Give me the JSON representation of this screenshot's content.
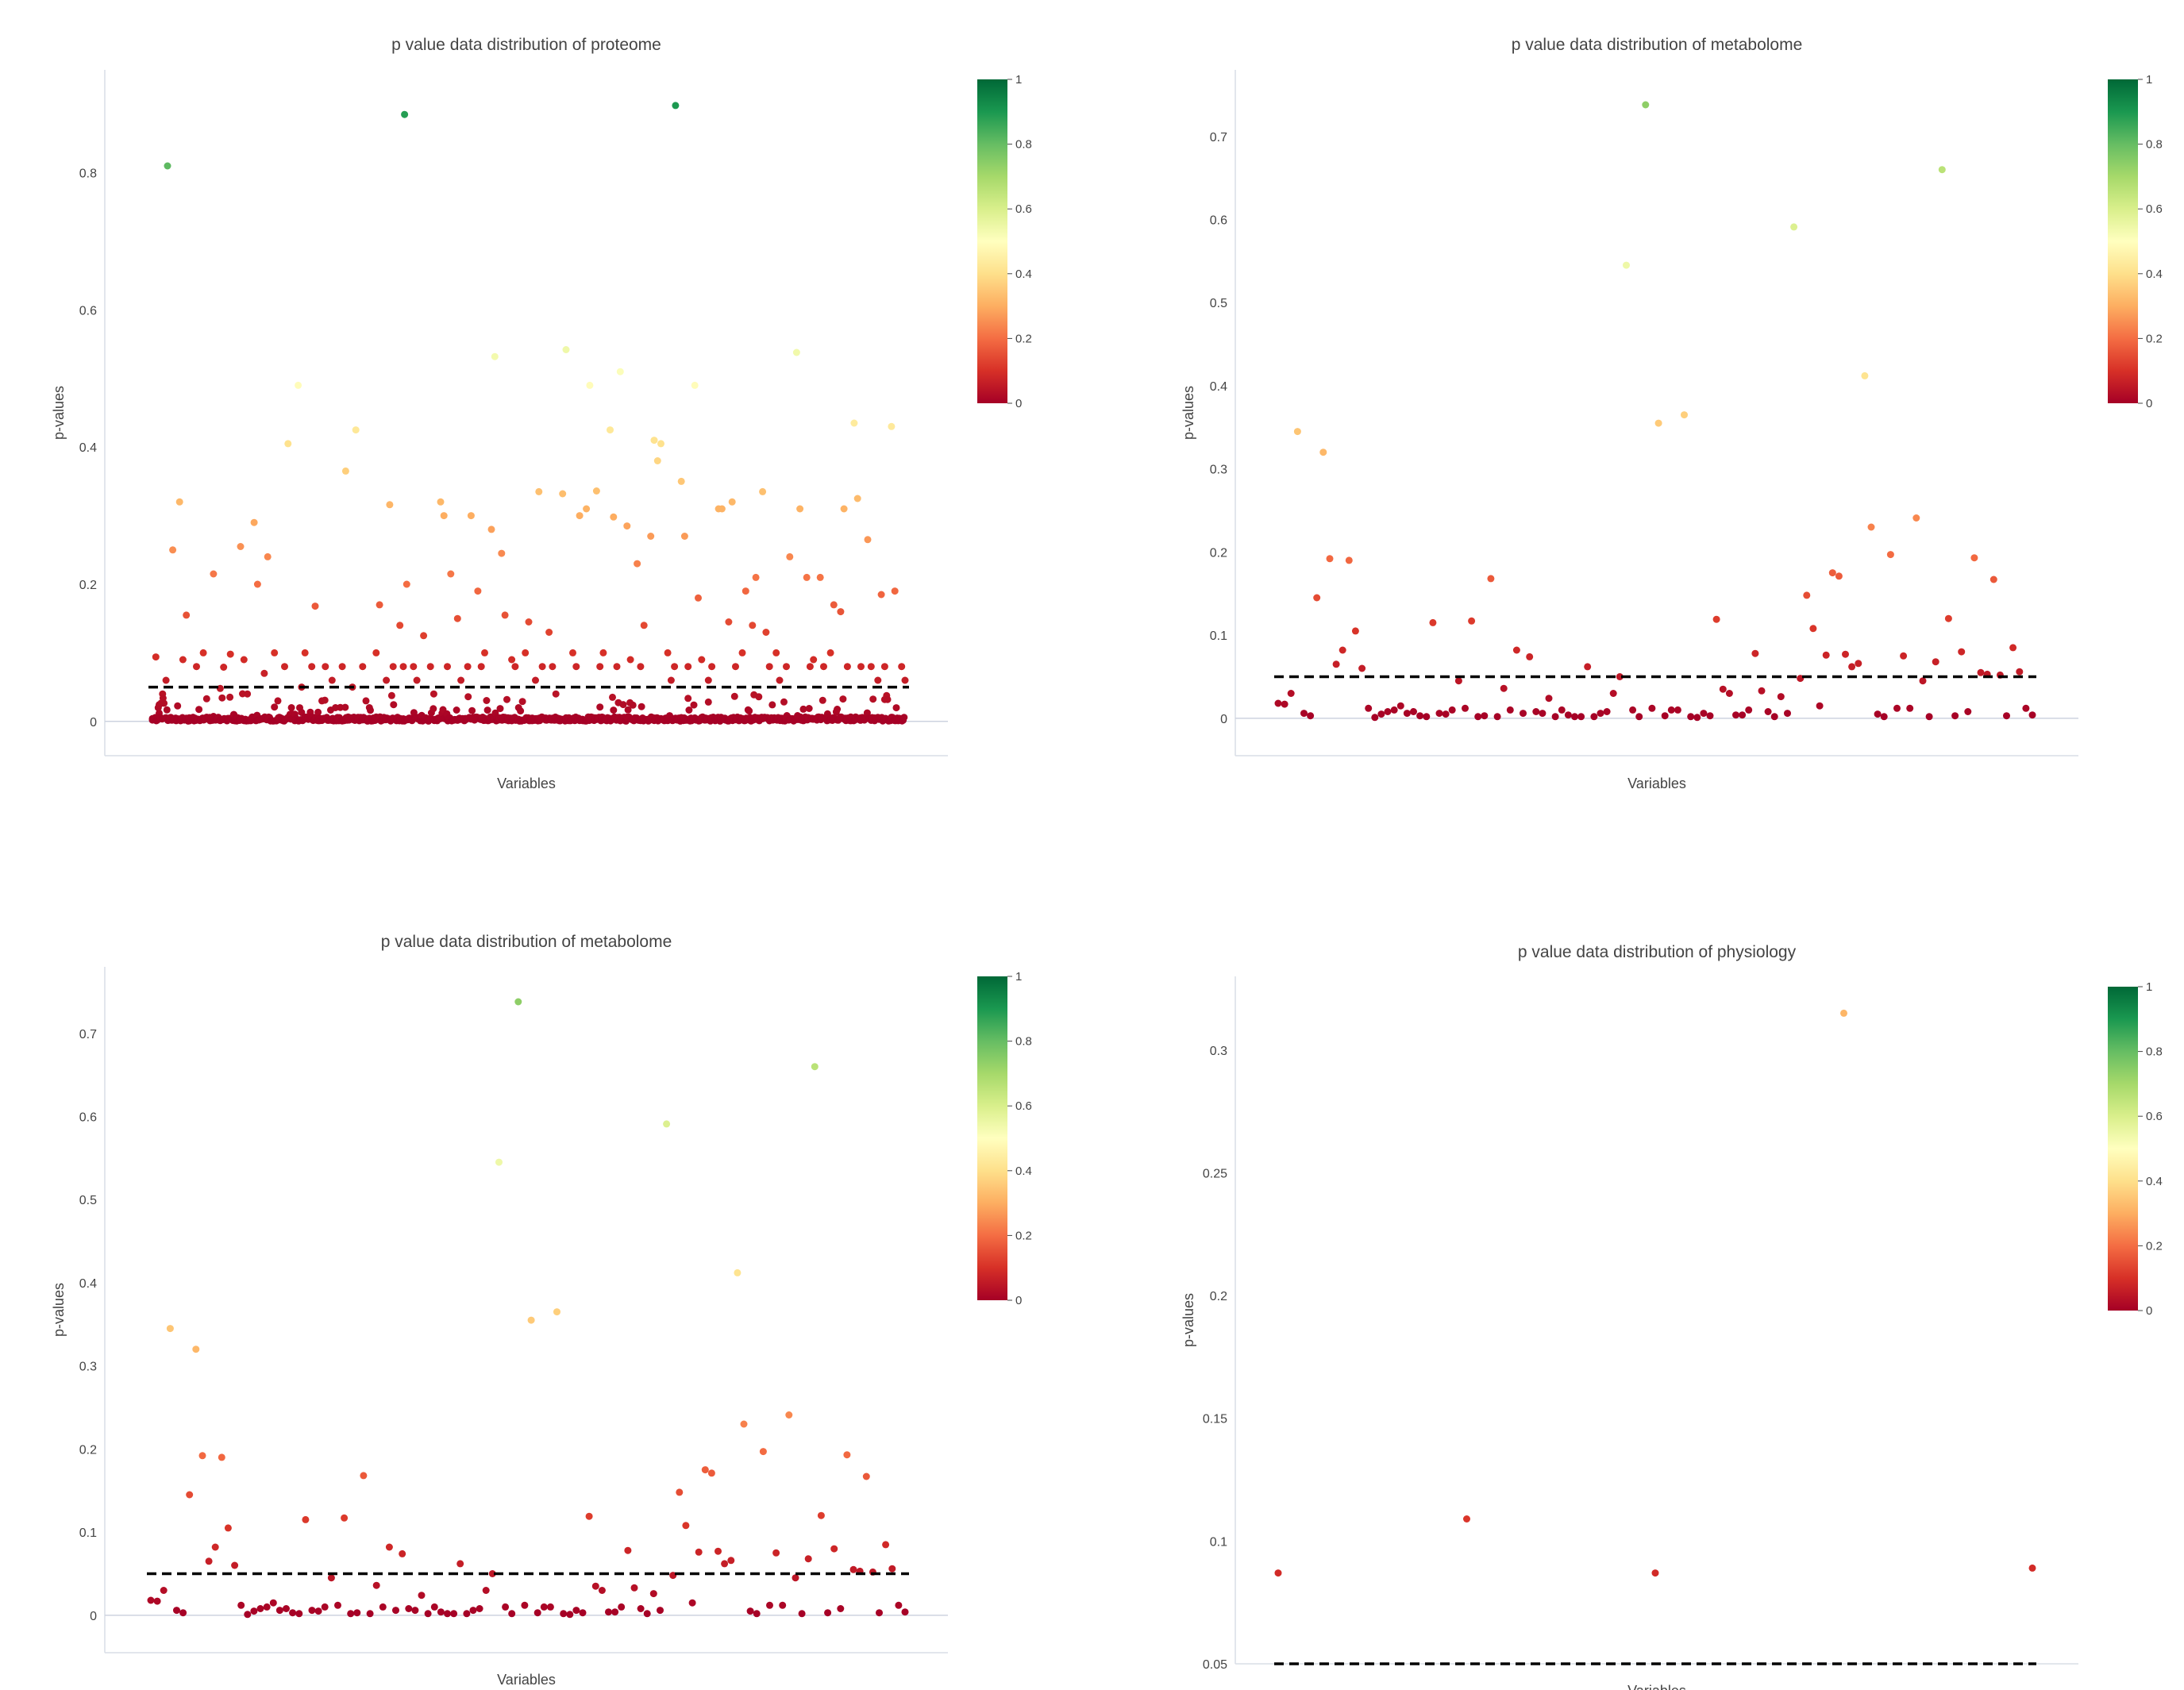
{
  "colorscale": {
    "name": "RdYlGn",
    "stops": [
      "#a50026",
      "#d73027",
      "#f46d43",
      "#fdae61",
      "#fee08b",
      "#ffffbf",
      "#d9ef8b",
      "#a6d96a",
      "#66bd63",
      "#1a9850",
      "#006837"
    ],
    "ticks": [
      "0",
      "0.2",
      "0.4",
      "0.6",
      "0.8",
      "1"
    ]
  },
  "threshold_color": "#000000",
  "chart_data": [
    {
      "type": "scatter",
      "title": "p value data distribution of proteome",
      "xlabel": "Variables",
      "ylabel": "p-values",
      "ylim": [
        -0.05,
        0.95
      ],
      "yticks": [
        0,
        0.2,
        0.4,
        0.6,
        0.8
      ],
      "yticklabels": [
        "0",
        "0.2",
        "0.4",
        "0.6",
        "0.8"
      ],
      "threshold": 0.05,
      "n_points": 1000,
      "values": [
        0.002,
        0.094,
        0.012,
        0.04,
        0.06,
        0.002,
        0.25,
        0.001,
        0.32,
        0.09,
        0.155,
        0.001,
        0.006,
        0.08,
        0.002,
        0.1,
        0.033,
        0.001,
        0.215,
        0.005,
        0.048,
        0.079,
        0.001,
        0.098,
        0.01,
        0.002,
        0.255,
        0.09,
        0.04,
        0.001,
        0.29,
        0.2,
        0.003,
        0.07,
        0.24,
        0.001,
        0.1,
        0.03,
        0.002,
        0.08,
        0.405,
        0.02,
        0.001,
        0.49,
        0.05,
        0.1,
        0.003,
        0.08,
        0.168,
        0.001,
        0.03,
        0.08,
        0.003,
        0.06,
        0.02,
        0.001,
        0.08,
        0.365,
        0.002,
        0.05,
        0.425,
        0.001,
        0.08,
        0.03,
        0.02,
        0.001,
        0.1,
        0.17,
        0.002,
        0.06,
        0.316,
        0.08,
        0.001,
        0.14,
        0.08,
        0.2,
        0.003,
        0.08,
        0.06,
        0.001,
        0.125,
        0.002,
        0.08,
        0.04,
        0.001,
        0.32,
        0.3,
        0.08,
        0.215,
        0.002,
        0.15,
        0.06,
        0.001,
        0.08,
        0.3,
        0.002,
        0.19,
        0.08,
        0.1,
        0.001,
        0.28,
        0.532,
        0.002,
        0.245,
        0.155,
        0.001,
        0.09,
        0.08,
        0.02,
        0.002,
        0.1,
        0.145,
        0.001,
        0.06,
        0.335,
        0.08,
        0.002,
        0.13,
        0.08,
        0.04,
        0.001,
        0.332,
        0.542,
        0.002,
        0.1,
        0.08,
        0.3,
        0.001,
        0.31,
        0.49,
        0.002,
        0.336,
        0.08,
        0.1,
        0.001,
        0.425,
        0.298,
        0.08,
        0.51,
        0.002,
        0.285,
        0.09,
        0.001,
        0.23,
        0.08,
        0.14,
        0.002,
        0.27,
        0.41,
        0.38,
        0.405,
        0.001,
        0.1,
        0.06,
        0.08,
        0.002,
        0.35,
        0.27,
        0.08,
        0.001,
        0.49,
        0.18,
        0.09,
        0.002,
        0.06,
        0.08,
        0.001,
        0.31,
        0.31,
        0.002,
        0.145,
        0.32,
        0.08,
        0.001,
        0.1,
        0.19,
        0.002,
        0.14,
        0.21,
        0.001,
        0.335,
        0.13,
        0.08,
        0.002,
        0.1,
        0.06,
        0.001,
        0.08,
        0.24,
        0.002,
        0.538,
        0.31,
        0.001,
        0.21,
        0.08,
        0.09,
        0.002,
        0.21,
        0.08,
        0.001,
        0.1,
        0.17,
        0.002,
        0.16,
        0.31,
        0.08,
        0.001,
        0.435,
        0.325,
        0.08,
        0.002,
        0.265,
        0.08,
        0.001,
        0.06,
        0.185,
        0.08,
        0.002,
        0.43,
        0.19,
        0.001,
        0.08,
        0.06
      ],
      "highlights": [
        {
          "x_frac": 0.02,
          "value": 0.81
        },
        {
          "x_frac": 0.335,
          "value": 0.885
        },
        {
          "x_frac": 0.695,
          "value": 0.898
        }
      ]
    },
    {
      "type": "scatter",
      "title": "p value data distribution of metabolome",
      "xlabel": "Variables",
      "ylabel": "p-values",
      "ylim": [
        -0.045,
        0.78
      ],
      "yticks": [
        0,
        0.1,
        0.2,
        0.3,
        0.4,
        0.5,
        0.6,
        0.7
      ],
      "yticklabels": [
        "0",
        "0.1",
        "0.2",
        "0.3",
        "0.4",
        "0.5",
        "0.6",
        "0.7"
      ],
      "threshold": 0.05,
      "values": [
        0.018,
        0.017,
        0.03,
        0.345,
        0.006,
        0.003,
        0.145,
        0.32,
        0.192,
        0.065,
        0.082,
        0.19,
        0.105,
        0.06,
        0.012,
        0.001,
        0.005,
        0.008,
        0.01,
        0.015,
        0.006,
        0.008,
        0.003,
        0.002,
        0.115,
        0.006,
        0.005,
        0.01,
        0.045,
        0.012,
        0.117,
        0.002,
        0.003,
        0.168,
        0.002,
        0.036,
        0.01,
        0.082,
        0.006,
        0.074,
        0.008,
        0.006,
        0.024,
        0.002,
        0.01,
        0.004,
        0.002,
        0.002,
        0.062,
        0.002,
        0.006,
        0.008,
        0.03,
        0.05,
        0.545,
        0.01,
        0.002,
        0.738,
        0.012,
        0.355,
        0.003,
        0.01,
        0.01,
        0.365,
        0.002,
        0.001,
        0.006,
        0.003,
        0.119,
        0.035,
        0.03,
        0.004,
        0.004,
        0.01,
        0.078,
        0.033,
        0.008,
        0.002,
        0.026,
        0.006,
        0.591,
        0.048,
        0.148,
        0.108,
        0.015,
        0.076,
        0.175,
        0.171,
        0.077,
        0.062,
        0.066,
        0.412,
        0.23,
        0.005,
        0.002,
        0.197,
        0.012,
        0.075,
        0.012,
        0.241,
        0.045,
        0.002,
        0.068,
        0.66,
        0.12,
        0.003,
        0.08,
        0.008,
        0.193,
        0.055,
        0.053,
        0.167,
        0.052,
        0.003,
        0.085,
        0.056,
        0.012,
        0.004
      ]
    },
    {
      "type": "scatter",
      "title": "p value data distribution of metabolome",
      "xlabel": "Variables",
      "ylabel": "p-values",
      "ylim": [
        -0.045,
        0.78
      ],
      "yticks": [
        0,
        0.1,
        0.2,
        0.3,
        0.4,
        0.5,
        0.6,
        0.7
      ],
      "yticklabels": [
        "0",
        "0.1",
        "0.2",
        "0.3",
        "0.4",
        "0.5",
        "0.6",
        "0.7"
      ],
      "threshold": 0.05,
      "values": [
        0.018,
        0.017,
        0.03,
        0.345,
        0.006,
        0.003,
        0.145,
        0.32,
        0.192,
        0.065,
        0.082,
        0.19,
        0.105,
        0.06,
        0.012,
        0.001,
        0.005,
        0.008,
        0.01,
        0.015,
        0.006,
        0.008,
        0.003,
        0.002,
        0.115,
        0.006,
        0.005,
        0.01,
        0.045,
        0.012,
        0.117,
        0.002,
        0.003,
        0.168,
        0.002,
        0.036,
        0.01,
        0.082,
        0.006,
        0.074,
        0.008,
        0.006,
        0.024,
        0.002,
        0.01,
        0.004,
        0.002,
        0.002,
        0.062,
        0.002,
        0.006,
        0.008,
        0.03,
        0.05,
        0.545,
        0.01,
        0.002,
        0.738,
        0.012,
        0.355,
        0.003,
        0.01,
        0.01,
        0.365,
        0.002,
        0.001,
        0.006,
        0.003,
        0.119,
        0.035,
        0.03,
        0.004,
        0.004,
        0.01,
        0.078,
        0.033,
        0.008,
        0.002,
        0.026,
        0.006,
        0.591,
        0.048,
        0.148,
        0.108,
        0.015,
        0.076,
        0.175,
        0.171,
        0.077,
        0.062,
        0.066,
        0.412,
        0.23,
        0.005,
        0.002,
        0.197,
        0.012,
        0.075,
        0.012,
        0.241,
        0.045,
        0.002,
        0.068,
        0.66,
        0.12,
        0.003,
        0.08,
        0.008,
        0.193,
        0.055,
        0.053,
        0.167,
        0.052,
        0.003,
        0.085,
        0.056,
        0.012,
        0.004
      ]
    },
    {
      "type": "scatter",
      "title": "p value data distribution of physiology",
      "xlabel": "Variables",
      "ylabel": "p-values",
      "ylim": [
        0.05,
        0.33
      ],
      "yticks": [
        0.05,
        0.1,
        0.15,
        0.2,
        0.25,
        0.3
      ],
      "yticklabels": [
        "0.05",
        "0.1",
        "0.15",
        "0.2",
        "0.25",
        "0.3"
      ],
      "threshold": 0.05,
      "values": [
        0.087,
        0.109,
        0.087,
        0.315,
        0.089
      ]
    }
  ]
}
